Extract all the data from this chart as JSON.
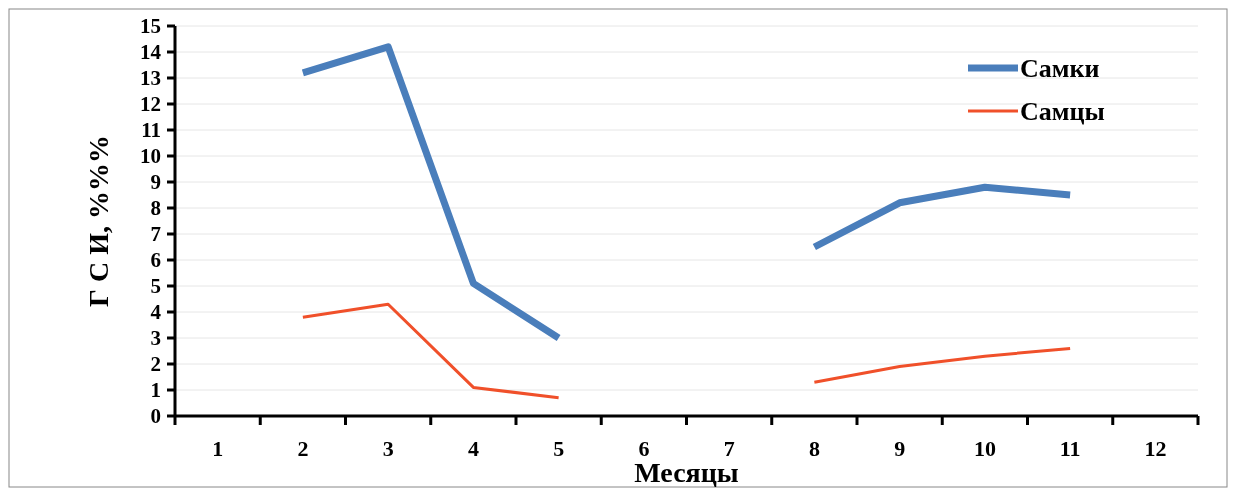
{
  "chart_data": {
    "type": "line",
    "xlabel": "Месяцы",
    "ylabel": "Г С И, %%%",
    "categories": [
      "1",
      "2",
      "3",
      "4",
      "5",
      "6",
      "7",
      "8",
      "9",
      "10",
      "11",
      "12"
    ],
    "series": [
      {
        "name": "Самки",
        "color": "#4a7ebb",
        "values": [
          null,
          13.2,
          14.2,
          5.1,
          3.0,
          null,
          null,
          6.5,
          8.2,
          8.8,
          8.5,
          null
        ]
      },
      {
        "name": "Самцы",
        "color": "#f0502a",
        "values": [
          null,
          3.8,
          4.3,
          1.1,
          0.7,
          null,
          null,
          1.3,
          1.9,
          2.3,
          2.6,
          null
        ]
      }
    ],
    "ylim": [
      0,
      15
    ],
    "yticks": [
      0,
      1,
      2,
      3,
      4,
      5,
      6,
      7,
      8,
      9,
      10,
      11,
      12,
      13,
      14,
      15
    ],
    "grid": "y",
    "legend": "top right",
    "marker": "none",
    "line_style": "solid"
  }
}
